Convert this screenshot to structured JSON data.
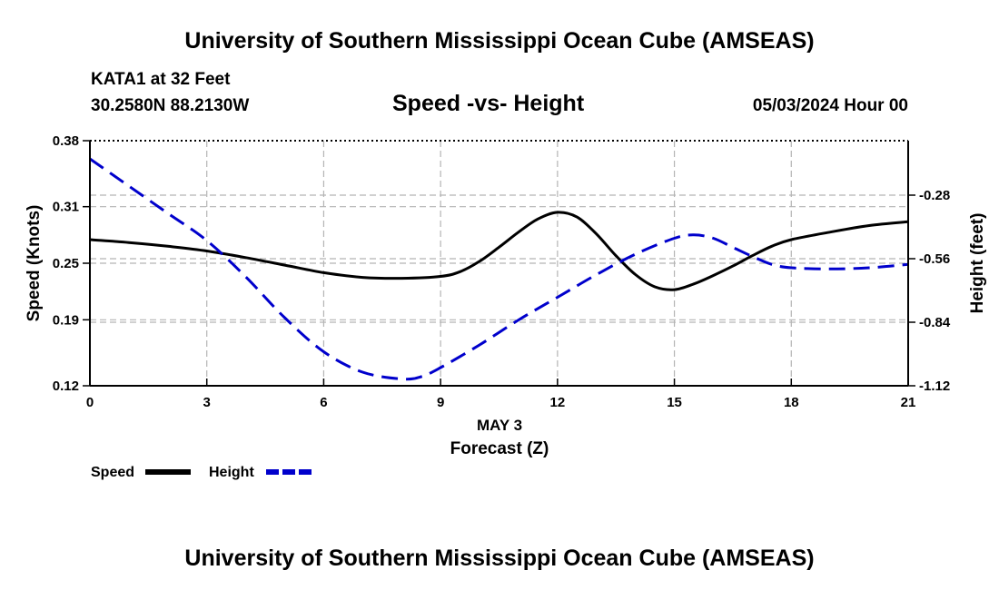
{
  "header": {
    "title": "University of Southern Mississippi Ocean Cube (AMSEAS)",
    "station": "KATA1 at 32 Feet",
    "coords": "30.2580N  88.2130W",
    "subtitle": "Speed -vs- Height",
    "datetime": "05/03/2024 Hour 00"
  },
  "footer": {
    "title": "University of Southern Mississippi Ocean Cube (AMSEAS)"
  },
  "chart_data": {
    "type": "line",
    "title": "Speed -vs- Height",
    "xlabel_date": "MAY 3",
    "xlabel": "Forecast (Z)",
    "ylabel": "Speed (Knots)",
    "y2label": "Height (feet)",
    "xlim": [
      0,
      21
    ],
    "ylim": [
      0.12,
      0.38
    ],
    "y2lim": [
      -1.12,
      -0.04
    ],
    "x_ticks": [
      "0",
      "3",
      "6",
      "9",
      "12",
      "15",
      "18",
      "21"
    ],
    "y_ticks": [
      "0.12",
      "0.19",
      "0.25",
      "0.31",
      "0.38"
    ],
    "y2_ticks": [
      "-1.12",
      "-0.84",
      "-0.56",
      "-0.28"
    ],
    "colors": {
      "speed": "#000000",
      "height": "#0000cc",
      "grid": "#b4b4b4"
    },
    "series": [
      {
        "name": "Speed",
        "axis": "left",
        "style": "solid",
        "x": [
          0,
          1,
          2,
          3,
          4,
          5,
          6,
          7,
          8,
          9,
          9.5,
          10,
          10.5,
          11,
          11.5,
          12,
          12.5,
          13,
          13.5,
          14,
          14.5,
          15,
          15.5,
          16,
          16.5,
          17,
          17.5,
          18,
          19,
          20,
          21
        ],
        "values": [
          0.275,
          0.272,
          0.268,
          0.263,
          0.256,
          0.248,
          0.24,
          0.235,
          0.234,
          0.236,
          0.241,
          0.252,
          0.267,
          0.283,
          0.297,
          0.304,
          0.299,
          0.281,
          0.258,
          0.238,
          0.225,
          0.222,
          0.228,
          0.237,
          0.247,
          0.258,
          0.268,
          0.275,
          0.283,
          0.29,
          0.294
        ]
      },
      {
        "name": "Height",
        "axis": "right",
        "style": "dashed",
        "x": [
          0,
          1,
          2,
          3,
          4,
          5,
          6,
          7,
          8,
          8.5,
          9,
          10,
          11,
          12,
          13,
          14,
          15,
          15.5,
          16,
          16.5,
          17,
          17.5,
          18,
          19,
          20,
          21
        ],
        "values": [
          -0.12,
          -0.24,
          -0.36,
          -0.48,
          -0.64,
          -0.82,
          -0.97,
          -1.06,
          -1.09,
          -1.08,
          -1.04,
          -0.94,
          -0.83,
          -0.73,
          -0.63,
          -0.54,
          -0.47,
          -0.455,
          -0.47,
          -0.51,
          -0.55,
          -0.585,
          -0.6,
          -0.605,
          -0.6,
          -0.585
        ]
      }
    ],
    "legend": [
      {
        "label": "Speed",
        "series": "Speed"
      },
      {
        "label": "Height",
        "series": "Height"
      }
    ]
  }
}
